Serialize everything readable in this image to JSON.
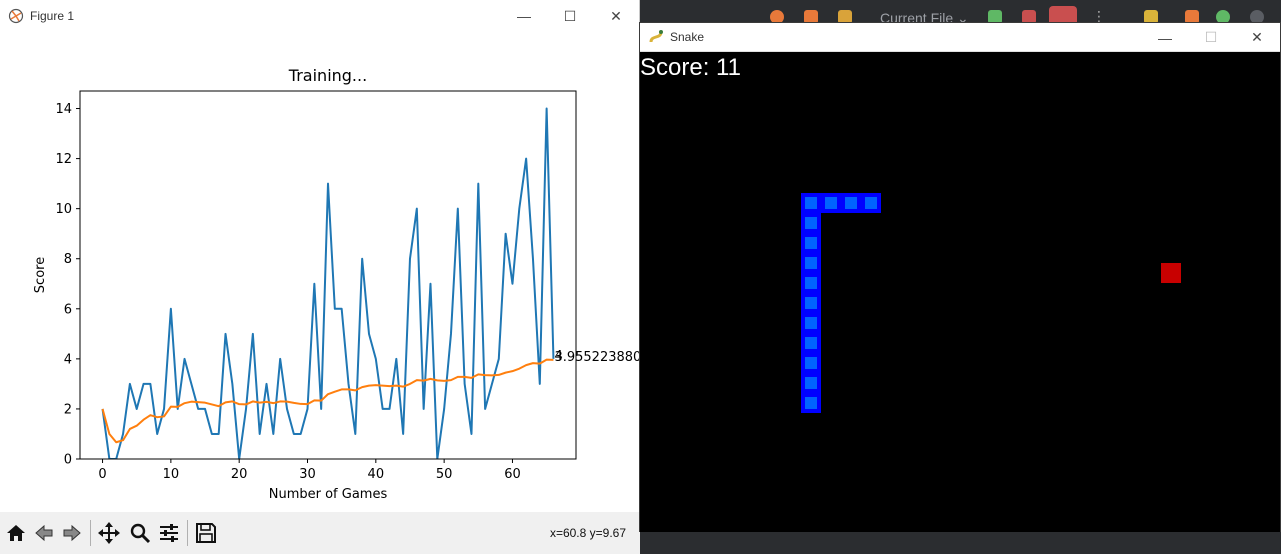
{
  "figure_window": {
    "title": "Figure 1",
    "app_icon": "matplotlib-figure-icon",
    "controls": {
      "minimize": "—",
      "maximize": "☐",
      "close": "✕"
    },
    "toolbar": {
      "buttons": [
        "home-icon",
        "back-icon",
        "forward-icon",
        "pan-icon",
        "zoom-icon",
        "configure-subplots-icon",
        "save-icon"
      ],
      "coords_text": "x=60.8 y=9.67"
    }
  },
  "chart_data": {
    "type": "line",
    "title": "Training...",
    "xlabel": "Number of Games",
    "ylabel": "Score",
    "xlim": [
      -3.3,
      69.3
    ],
    "ylim": [
      0,
      14.7
    ],
    "xticks": [
      0,
      10,
      20,
      30,
      40,
      50,
      60
    ],
    "yticks": [
      0,
      2,
      4,
      6,
      8,
      10,
      12,
      14
    ],
    "grid": false,
    "series": [
      {
        "color": "#1f77b4",
        "values": [
          2,
          0,
          0,
          1,
          3,
          2,
          3,
          3,
          1,
          2,
          6,
          2,
          4,
          3,
          2,
          2,
          1,
          1,
          5,
          3,
          0,
          2,
          5,
          1,
          3,
          1,
          4,
          2,
          1,
          1,
          2,
          7,
          2,
          11,
          6,
          6,
          3,
          1,
          8,
          5,
          4,
          2,
          2,
          4,
          1,
          8,
          10,
          2,
          7,
          0,
          2,
          5,
          10,
          3,
          1,
          11,
          2,
          3,
          4,
          9,
          7,
          10,
          12,
          8,
          3,
          14,
          4
        ]
      },
      {
        "color": "#ff7f0e",
        "values": [
          2,
          1,
          0.67,
          0.75,
          1.2,
          1.33,
          1.57,
          1.75,
          1.67,
          1.7,
          2.09,
          2.08,
          2.23,
          2.29,
          2.27,
          2.25,
          2.18,
          2.11,
          2.26,
          2.3,
          2.19,
          2.18,
          2.3,
          2.25,
          2.28,
          2.23,
          2.3,
          2.29,
          2.24,
          2.2,
          2.19,
          2.34,
          2.33,
          2.59,
          2.69,
          2.78,
          2.78,
          2.74,
          2.87,
          2.93,
          2.95,
          2.93,
          2.91,
          2.93,
          2.89,
          3.0,
          3.15,
          3.13,
          3.2,
          3.14,
          3.12,
          3.15,
          3.28,
          3.28,
          3.24,
          3.38,
          3.35,
          3.34,
          3.36,
          3.45,
          3.51,
          3.61,
          3.75,
          3.83,
          3.81,
          3.97,
          3.96
        ]
      }
    ],
    "annotations": [
      "4",
      "3.955223880"
    ]
  },
  "snake_window": {
    "title": "Snake",
    "app_icon": "pygame-snake-icon",
    "controls": {
      "minimize": "—",
      "maximize": "☐",
      "close": "✕"
    },
    "score_text": "Score: 11",
    "colors": {
      "background": "#000000",
      "snake_outer": "#0000ff",
      "snake_inner": "#0064ff",
      "food": "#c80000"
    },
    "snake_cells": [
      [
        11,
        7
      ],
      [
        10,
        7
      ],
      [
        9,
        7
      ],
      [
        8,
        7
      ],
      [
        8,
        8
      ],
      [
        8,
        9
      ],
      [
        8,
        10
      ],
      [
        8,
        11
      ],
      [
        8,
        12
      ],
      [
        8,
        13
      ],
      [
        8,
        14
      ],
      [
        8,
        15
      ],
      [
        8,
        16
      ],
      [
        8,
        17
      ]
    ],
    "food_cell": [
      26,
      11
    ]
  },
  "ide_background": {
    "run_config_text": "Current File ⌄"
  }
}
